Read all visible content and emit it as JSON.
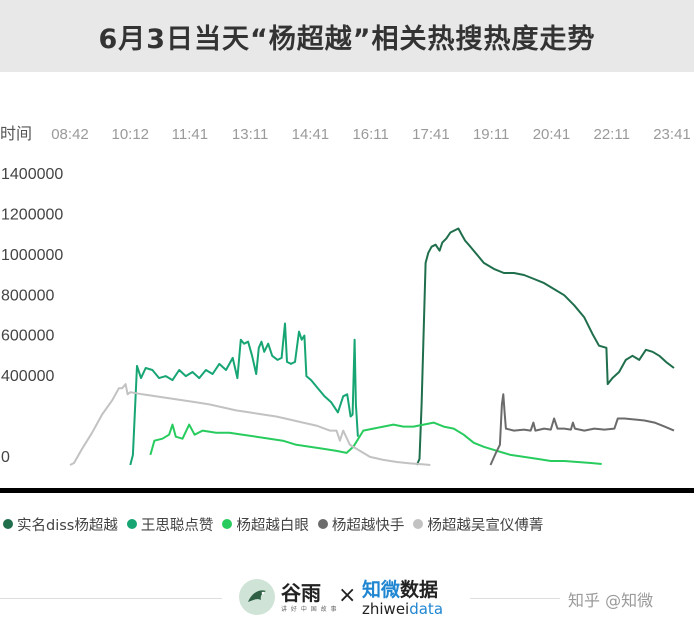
{
  "title": "6月3日当天“杨超越”相关热搜热度走势",
  "chart_data": {
    "type": "line",
    "x_axis_label": "时间",
    "x_ticks": [
      "08:42",
      "10:12",
      "11:41",
      "13:11",
      "14:41",
      "16:11",
      "17:41",
      "19:11",
      "20:41",
      "22:11",
      "23:41"
    ],
    "y_ticks": [
      0,
      400000,
      600000,
      800000,
      1000000,
      1200000,
      1400000
    ],
    "ylim": [
      0,
      1400000
    ],
    "legend_position": "bottom",
    "series": [
      {
        "name": "实名diss杨超越",
        "color": "#1f6e4c",
        "points": [
          [
            "17:20",
            0
          ],
          [
            "17:24",
            30000
          ],
          [
            "17:27",
            300000
          ],
          [
            "17:30",
            650000
          ],
          [
            "17:33",
            1000000
          ],
          [
            "17:37",
            1050000
          ],
          [
            "17:42",
            1080000
          ],
          [
            "17:48",
            1090000
          ],
          [
            "17:54",
            1060000
          ],
          [
            "17:58",
            1100000
          ],
          [
            "18:04",
            1120000
          ],
          [
            "18:10",
            1150000
          ],
          [
            "18:16",
            1160000
          ],
          [
            "18:22",
            1170000
          ],
          [
            "18:27",
            1140000
          ],
          [
            "18:32",
            1110000
          ],
          [
            "18:40",
            1080000
          ],
          [
            "18:50",
            1040000
          ],
          [
            "19:00",
            1000000
          ],
          [
            "19:15",
            970000
          ],
          [
            "19:30",
            950000
          ],
          [
            "19:45",
            950000
          ],
          [
            "20:00",
            940000
          ],
          [
            "20:15",
            920000
          ],
          [
            "20:30",
            900000
          ],
          [
            "20:45",
            870000
          ],
          [
            "21:00",
            840000
          ],
          [
            "21:15",
            790000
          ],
          [
            "21:30",
            730000
          ],
          [
            "21:42",
            650000
          ],
          [
            "21:52",
            590000
          ],
          [
            "22:03",
            580000
          ],
          [
            "22:05",
            400000
          ],
          [
            "22:12",
            430000
          ],
          [
            "22:22",
            460000
          ],
          [
            "22:32",
            520000
          ],
          [
            "22:42",
            540000
          ],
          [
            "22:52",
            520000
          ],
          [
            "23:02",
            570000
          ],
          [
            "23:12",
            560000
          ],
          [
            "23:22",
            540000
          ],
          [
            "23:32",
            510000
          ],
          [
            "23:44",
            480000
          ]
        ]
      },
      {
        "name": "王思聪点赞",
        "color": "#17a673",
        "points": [
          [
            "10:12",
            0
          ],
          [
            "10:16",
            50000
          ],
          [
            "10:22",
            490000
          ],
          [
            "10:28",
            430000
          ],
          [
            "10:35",
            480000
          ],
          [
            "10:45",
            470000
          ],
          [
            "10:55",
            430000
          ],
          [
            "11:05",
            440000
          ],
          [
            "11:15",
            420000
          ],
          [
            "11:25",
            470000
          ],
          [
            "11:35",
            440000
          ],
          [
            "11:45",
            460000
          ],
          [
            "11:55",
            430000
          ],
          [
            "12:05",
            470000
          ],
          [
            "12:15",
            450000
          ],
          [
            "12:25",
            500000
          ],
          [
            "12:35",
            470000
          ],
          [
            "12:45",
            530000
          ],
          [
            "12:52",
            430000
          ],
          [
            "12:57",
            620000
          ],
          [
            "13:02",
            600000
          ],
          [
            "13:08",
            610000
          ],
          [
            "13:14",
            540000
          ],
          [
            "13:20",
            450000
          ],
          [
            "13:24",
            580000
          ],
          [
            "13:28",
            610000
          ],
          [
            "13:32",
            560000
          ],
          [
            "13:38",
            600000
          ],
          [
            "13:44",
            540000
          ],
          [
            "13:52",
            520000
          ],
          [
            "13:58",
            530000
          ],
          [
            "14:03",
            700000
          ],
          [
            "14:06",
            510000
          ],
          [
            "14:12",
            500000
          ],
          [
            "14:18",
            510000
          ],
          [
            "14:24",
            660000
          ],
          [
            "14:28",
            620000
          ],
          [
            "14:32",
            640000
          ],
          [
            "14:35",
            440000
          ],
          [
            "14:42",
            420000
          ],
          [
            "14:52",
            380000
          ],
          [
            "15:02",
            340000
          ],
          [
            "15:12",
            310000
          ],
          [
            "15:22",
            260000
          ],
          [
            "15:30",
            340000
          ],
          [
            "15:36",
            350000
          ],
          [
            "15:41",
            240000
          ],
          [
            "15:44",
            250000
          ],
          [
            "15:47",
            620000
          ],
          [
            "15:49",
            300000
          ],
          [
            "15:52",
            140000
          ]
        ]
      },
      {
        "name": "杨超越白眼",
        "color": "#28cc5e",
        "points": [
          [
            "10:42",
            50000
          ],
          [
            "10:48",
            120000
          ],
          [
            "11:00",
            130000
          ],
          [
            "11:10",
            150000
          ],
          [
            "11:15",
            200000
          ],
          [
            "11:20",
            140000
          ],
          [
            "11:30",
            130000
          ],
          [
            "11:40",
            200000
          ],
          [
            "11:48",
            150000
          ],
          [
            "12:00",
            170000
          ],
          [
            "12:20",
            160000
          ],
          [
            "12:40",
            160000
          ],
          [
            "13:00",
            150000
          ],
          [
            "13:20",
            140000
          ],
          [
            "13:40",
            130000
          ],
          [
            "14:00",
            120000
          ],
          [
            "14:20",
            100000
          ],
          [
            "14:40",
            90000
          ],
          [
            "15:00",
            80000
          ],
          [
            "15:20",
            70000
          ],
          [
            "15:35",
            60000
          ],
          [
            "15:45",
            90000
          ],
          [
            "16:00",
            170000
          ],
          [
            "16:15",
            180000
          ],
          [
            "16:30",
            190000
          ],
          [
            "16:45",
            200000
          ],
          [
            "17:00",
            190000
          ],
          [
            "17:15",
            190000
          ],
          [
            "17:30",
            200000
          ],
          [
            "17:45",
            210000
          ],
          [
            "18:00",
            190000
          ],
          [
            "18:15",
            180000
          ],
          [
            "18:30",
            150000
          ],
          [
            "18:45",
            110000
          ],
          [
            "19:00",
            90000
          ],
          [
            "19:20",
            70000
          ],
          [
            "19:40",
            50000
          ],
          [
            "20:00",
            40000
          ],
          [
            "20:20",
            30000
          ],
          [
            "20:40",
            20000
          ],
          [
            "21:00",
            20000
          ],
          [
            "21:20",
            15000
          ],
          [
            "21:40",
            10000
          ],
          [
            "21:56",
            5000
          ]
        ]
      },
      {
        "name": "杨超越快手",
        "color": "#6b6b6b",
        "points": [
          [
            "19:10",
            0
          ],
          [
            "19:18",
            60000
          ],
          [
            "19:24",
            100000
          ],
          [
            "19:27",
            300000
          ],
          [
            "19:29",
            350000
          ],
          [
            "19:31",
            260000
          ],
          [
            "19:33",
            180000
          ],
          [
            "19:45",
            170000
          ],
          [
            "20:00",
            175000
          ],
          [
            "20:10",
            170000
          ],
          [
            "20:14",
            210000
          ],
          [
            "20:17",
            170000
          ],
          [
            "20:30",
            180000
          ],
          [
            "20:40",
            175000
          ],
          [
            "20:45",
            230000
          ],
          [
            "20:50",
            180000
          ],
          [
            "21:00",
            180000
          ],
          [
            "21:10",
            175000
          ],
          [
            "21:13",
            210000
          ],
          [
            "21:16",
            180000
          ],
          [
            "21:30",
            170000
          ],
          [
            "21:45",
            180000
          ],
          [
            "22:00",
            175000
          ],
          [
            "22:15",
            180000
          ],
          [
            "22:20",
            230000
          ],
          [
            "22:30",
            230000
          ],
          [
            "22:45",
            225000
          ],
          [
            "23:00",
            220000
          ],
          [
            "23:15",
            210000
          ],
          [
            "23:30",
            190000
          ],
          [
            "23:44",
            170000
          ]
        ]
      },
      {
        "name": "杨超越吴宣仪傅菁",
        "color": "#c2c2c2",
        "points": [
          [
            "08:42",
            0
          ],
          [
            "08:48",
            10000
          ],
          [
            "09:00",
            80000
          ],
          [
            "09:15",
            160000
          ],
          [
            "09:30",
            250000
          ],
          [
            "09:45",
            320000
          ],
          [
            "09:55",
            380000
          ],
          [
            "10:00",
            380000
          ],
          [
            "10:05",
            400000
          ],
          [
            "10:08",
            350000
          ],
          [
            "10:12",
            360000
          ],
          [
            "10:30",
            350000
          ],
          [
            "10:50",
            340000
          ],
          [
            "11:10",
            330000
          ],
          [
            "11:30",
            320000
          ],
          [
            "11:50",
            310000
          ],
          [
            "12:10",
            300000
          ],
          [
            "12:30",
            285000
          ],
          [
            "12:50",
            270000
          ],
          [
            "13:10",
            260000
          ],
          [
            "13:30",
            250000
          ],
          [
            "13:50",
            240000
          ],
          [
            "14:10",
            225000
          ],
          [
            "14:30",
            210000
          ],
          [
            "14:50",
            195000
          ],
          [
            "15:10",
            170000
          ],
          [
            "15:20",
            170000
          ],
          [
            "15:25",
            120000
          ],
          [
            "15:30",
            170000
          ],
          [
            "15:40",
            100000
          ],
          [
            "15:55",
            70000
          ],
          [
            "16:10",
            40000
          ],
          [
            "16:30",
            25000
          ],
          [
            "16:50",
            15000
          ],
          [
            "17:10",
            8000
          ],
          [
            "17:30",
            3000
          ],
          [
            "17:40",
            0
          ]
        ]
      }
    ]
  },
  "footer": {
    "logo_guyu_name": "谷雨",
    "logo_guyu_sub": "讲 好 中 国 故 事",
    "cross": "×",
    "logo_zhiwei_cn_a": "知微",
    "logo_zhiwei_cn_b": "数据",
    "logo_zhiwei_en_a": "zhiwei",
    "logo_zhiwei_en_b": "data",
    "watermark": "知乎 @知微"
  }
}
